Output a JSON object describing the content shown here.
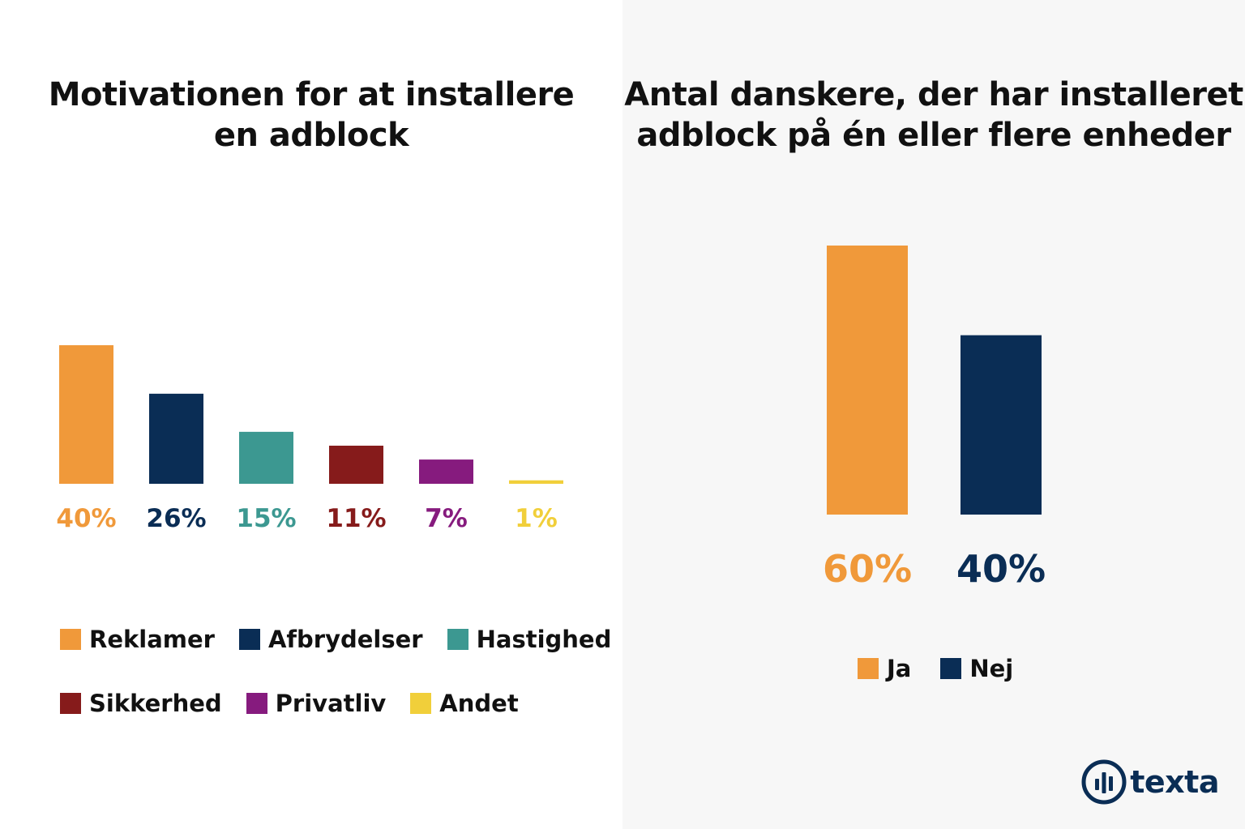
{
  "colors": {
    "orange": "#f0993a",
    "navy": "#0a2d55",
    "teal": "#3c9891",
    "darkred": "#861b1b",
    "purple": "#861b7e",
    "yellow": "#f1cf3a"
  },
  "chart_data": [
    {
      "type": "bar",
      "title": "Motivationen for at installere en adblock",
      "title_lines": [
        "Motivationen for at installere",
        "en adblock"
      ],
      "categories": [
        "Reklamer",
        "Afbrydelser",
        "Hastighed",
        "Sikkerhed",
        "Privatliv",
        "Andet"
      ],
      "values": [
        40,
        26,
        15,
        11,
        7,
        1
      ],
      "value_labels": [
        "40%",
        "26%",
        "15%",
        "11%",
        "7%",
        "1%"
      ],
      "colors": [
        "#f0993a",
        "#0a2d55",
        "#3c9891",
        "#861b1b",
        "#861b7e",
        "#f1cf3a"
      ],
      "ylim": [
        0,
        40
      ],
      "grid": false,
      "axes_visible": false,
      "legend": "bottom",
      "legend_rows": [
        [
          "Reklamer",
          "Afbrydelser",
          "Hastighed"
        ],
        [
          "Sikkerhed",
          "Privatliv",
          "Andet"
        ]
      ]
    },
    {
      "type": "bar",
      "title": "Antal danskere, der har installeret adblock på én eller flere enheder",
      "title_lines": [
        "Antal danskere, der har installeret",
        "adblock på én eller flere enheder"
      ],
      "categories": [
        "Ja",
        "Nej"
      ],
      "values": [
        60,
        40
      ],
      "value_labels": [
        "60%",
        "40%"
      ],
      "colors": [
        "#f0993a",
        "#0a2d55"
      ],
      "ylim": [
        0,
        60
      ],
      "grid": false,
      "axes_visible": false,
      "legend": "bottom"
    }
  ],
  "logo": {
    "text": "texta",
    "icon": "texta-bars-icon"
  }
}
